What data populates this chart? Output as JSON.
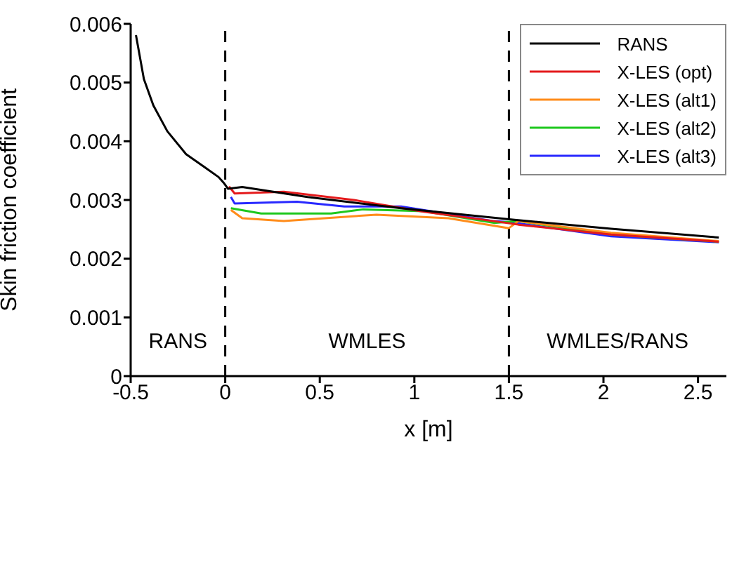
{
  "chart_data": {
    "type": "line",
    "xlabel": "x [m]",
    "ylabel": "Skin friction coefficient",
    "xlim": [
      -0.5,
      2.65
    ],
    "ylim": [
      0,
      0.006
    ],
    "xticks": [
      -0.5,
      0,
      0.5,
      1,
      1.5,
      2,
      2.5
    ],
    "yticks": [
      0,
      0.001,
      0.002,
      0.003,
      0.004,
      0.005,
      0.006
    ],
    "grid": false,
    "legend": "top right",
    "line_style": "solid",
    "marker": "none",
    "series": [
      {
        "name": "RANS",
        "color": "#000000",
        "x": [
          -0.472,
          -0.43,
          -0.38,
          -0.306,
          -0.207,
          -0.109,
          -0.035,
          -0.005,
          0.015,
          0.09,
          0.435,
          0.93,
          1.5,
          2.04,
          2.61
        ],
        "values": [
          0.00581,
          0.00506,
          0.00461,
          0.00417,
          0.00378,
          0.00356,
          0.00339,
          0.00328,
          0.00319,
          0.00322,
          0.00305,
          0.00286,
          0.00267,
          0.00251,
          0.00236
        ]
      },
      {
        "name": "X-LES (opt)",
        "color": "#e41a1c",
        "x": [
          0.02,
          0.05,
          0.31,
          0.68,
          1.05,
          1.42,
          1.55,
          2.04,
          2.61
        ],
        "values": [
          0.00323,
          0.00311,
          0.00314,
          0.003,
          0.0028,
          0.00264,
          0.00258,
          0.00241,
          0.00229
        ]
      },
      {
        "name": "X-LES (alt1)",
        "color": "#ff8c1a",
        "x": [
          0.03,
          0.09,
          0.31,
          0.8,
          1.18,
          1.5,
          1.55,
          2.04,
          2.61
        ],
        "values": [
          0.00283,
          0.00269,
          0.00264,
          0.00275,
          0.00269,
          0.00252,
          0.00264,
          0.00244,
          0.0023
        ]
      },
      {
        "name": "X-LES (alt2)",
        "color": "#1ec81e",
        "x": [
          0.03,
          0.19,
          0.56,
          0.73,
          1.05,
          1.42,
          1.55,
          2.04,
          2.61
        ],
        "values": [
          0.00286,
          0.00277,
          0.00277,
          0.00284,
          0.00281,
          0.00261,
          0.00264,
          0.00241,
          0.00229
        ]
      },
      {
        "name": "X-LES (alt3)",
        "color": "#2828ff",
        "x": [
          0.03,
          0.05,
          0.38,
          0.63,
          0.93,
          1.42,
          1.51,
          2.04,
          2.61
        ],
        "values": [
          0.00305,
          0.00294,
          0.00297,
          0.00289,
          0.00289,
          0.00264,
          0.00262,
          0.00238,
          0.00228
        ]
      }
    ],
    "ref_lines": [
      {
        "axis": "x",
        "value": 0,
        "line_style": "dashed",
        "color": "#000000"
      },
      {
        "axis": "x",
        "value": 1.5,
        "line_style": "dashed",
        "color": "#000000"
      }
    ],
    "annotations": [
      "RANS",
      "WMLES",
      "WMLES/RANS"
    ]
  }
}
